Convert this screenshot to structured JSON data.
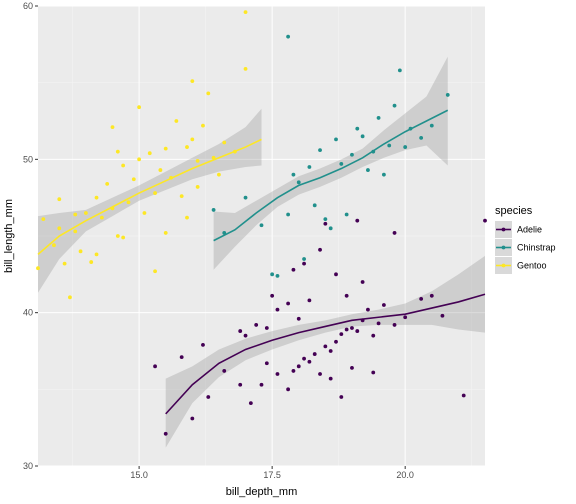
{
  "chart_data": {
    "type": "scatter",
    "title": "",
    "xlabel": "bill_depth_mm",
    "ylabel": "bill_length_mm",
    "xlim": [
      13.1,
      21.5
    ],
    "ylim": [
      30.0,
      60.0
    ],
    "xticks": [
      15.0,
      17.5,
      20.0
    ],
    "xtick_labels": [
      "15.0",
      "17.5",
      "20.0"
    ],
    "yticks": [
      30,
      40,
      50,
      60
    ],
    "ytick_labels": [
      "30",
      "40",
      "50",
      "60"
    ],
    "background": "#ebebeb",
    "grid": true,
    "smoother": "loess with 95% confidence band",
    "legend": {
      "title": "species",
      "position": "right"
    },
    "series": [
      {
        "name": "Adelie",
        "color": "#440154",
        "points": [
          [
            15.5,
            32.1
          ],
          [
            16.0,
            33.1
          ],
          [
            16.3,
            34.5
          ],
          [
            16.9,
            35.3
          ],
          [
            17.1,
            34.1
          ],
          [
            17.3,
            35.3
          ],
          [
            17.4,
            36.7
          ],
          [
            17.6,
            36.0
          ],
          [
            17.8,
            35.0
          ],
          [
            17.9,
            36.2
          ],
          [
            18.0,
            36.5
          ],
          [
            18.1,
            37.0
          ],
          [
            18.2,
            36.8
          ],
          [
            18.3,
            37.3
          ],
          [
            18.4,
            36.0
          ],
          [
            18.5,
            37.8
          ],
          [
            18.6,
            37.5
          ],
          [
            18.7,
            38.1
          ],
          [
            18.8,
            38.6
          ],
          [
            18.9,
            38.9
          ],
          [
            19.0,
            39.0
          ],
          [
            19.1,
            38.8
          ],
          [
            19.2,
            39.5
          ],
          [
            19.3,
            40.2
          ],
          [
            19.4,
            38.5
          ],
          [
            19.5,
            39.3
          ],
          [
            19.6,
            40.5
          ],
          [
            19.8,
            39.2
          ],
          [
            20.0,
            39.7
          ],
          [
            20.3,
            40.9
          ],
          [
            20.5,
            41.1
          ],
          [
            21.1,
            34.6
          ],
          [
            21.5,
            46.0
          ],
          [
            17.8,
            40.6
          ],
          [
            18.1,
            43.2
          ],
          [
            18.4,
            44.1
          ],
          [
            18.7,
            42.5
          ],
          [
            18.9,
            41.1
          ],
          [
            19.2,
            42.0
          ],
          [
            17.5,
            41.1
          ],
          [
            17.2,
            39.2
          ],
          [
            16.6,
            36.2
          ],
          [
            16.2,
            37.9
          ],
          [
            15.8,
            37.1
          ],
          [
            15.3,
            36.5
          ],
          [
            17.0,
            38.5
          ],
          [
            18.5,
            45.8
          ],
          [
            19.1,
            46.0
          ],
          [
            19.8,
            45.2
          ],
          [
            20.7,
            39.8
          ],
          [
            17.9,
            42.8
          ],
          [
            18.2,
            40.8
          ],
          [
            18.0,
            39.6
          ],
          [
            19.4,
            36.1
          ],
          [
            18.8,
            34.5
          ],
          [
            17.6,
            40.2
          ],
          [
            16.9,
            38.8
          ],
          [
            18.6,
            35.7
          ],
          [
            19.0,
            36.4
          ],
          [
            17.4,
            39.0
          ]
        ]
      },
      {
        "name": "Chinstrap",
        "color": "#21908c",
        "points": [
          [
            16.4,
            46.7
          ],
          [
            16.6,
            45.2
          ],
          [
            17.0,
            47.5
          ],
          [
            17.3,
            45.7
          ],
          [
            17.5,
            42.5
          ],
          [
            17.8,
            46.4
          ],
          [
            17.9,
            49.0
          ],
          [
            18.0,
            48.5
          ],
          [
            18.2,
            49.5
          ],
          [
            18.3,
            47.0
          ],
          [
            18.4,
            50.6
          ],
          [
            18.5,
            46.1
          ],
          [
            18.7,
            51.3
          ],
          [
            18.8,
            49.7
          ],
          [
            19.0,
            50.3
          ],
          [
            19.1,
            52.0
          ],
          [
            19.2,
            51.5
          ],
          [
            19.4,
            50.5
          ],
          [
            19.5,
            52.7
          ],
          [
            19.6,
            49.0
          ],
          [
            19.8,
            53.5
          ],
          [
            19.9,
            55.8
          ],
          [
            20.0,
            50.8
          ],
          [
            20.1,
            52.0
          ],
          [
            20.3,
            51.4
          ],
          [
            20.5,
            52.2
          ],
          [
            20.8,
            54.2
          ],
          [
            17.8,
            58.0
          ],
          [
            18.1,
            43.5
          ],
          [
            18.9,
            46.4
          ],
          [
            19.3,
            49.3
          ],
          [
            17.6,
            42.4
          ],
          [
            18.6,
            45.5
          ],
          [
            19.7,
            50.9
          ]
        ]
      },
      {
        "name": "Gentoo",
        "color": "#fde725",
        "points": [
          [
            13.1,
            42.9
          ],
          [
            13.2,
            46.1
          ],
          [
            13.4,
            44.4
          ],
          [
            13.5,
            47.4
          ],
          [
            13.6,
            43.2
          ],
          [
            13.7,
            41.0
          ],
          [
            13.8,
            45.3
          ],
          [
            13.9,
            44.0
          ],
          [
            14.0,
            46.5
          ],
          [
            14.1,
            43.3
          ],
          [
            14.2,
            47.5
          ],
          [
            14.3,
            46.2
          ],
          [
            14.4,
            48.4
          ],
          [
            14.5,
            46.8
          ],
          [
            14.6,
            45.0
          ],
          [
            14.7,
            49.6
          ],
          [
            14.8,
            47.2
          ],
          [
            14.9,
            48.7
          ],
          [
            15.0,
            50.0
          ],
          [
            15.1,
            46.5
          ],
          [
            15.2,
            50.4
          ],
          [
            15.3,
            47.8
          ],
          [
            15.4,
            49.3
          ],
          [
            15.5,
            50.7
          ],
          [
            15.6,
            48.8
          ],
          [
            15.7,
            52.5
          ],
          [
            15.8,
            47.6
          ],
          [
            15.9,
            50.8
          ],
          [
            16.0,
            51.3
          ],
          [
            16.1,
            49.9
          ],
          [
            16.2,
            52.2
          ],
          [
            16.3,
            54.3
          ],
          [
            16.4,
            50.1
          ],
          [
            16.6,
            51.1
          ],
          [
            16.8,
            50.5
          ],
          [
            17.0,
            55.9
          ],
          [
            17.0,
            59.6
          ],
          [
            14.5,
            52.1
          ],
          [
            15.0,
            53.4
          ],
          [
            16.0,
            55.1
          ],
          [
            13.8,
            46.4
          ],
          [
            14.2,
            43.8
          ],
          [
            14.7,
            44.9
          ],
          [
            15.5,
            45.2
          ],
          [
            16.1,
            48.2
          ],
          [
            15.3,
            42.7
          ],
          [
            14.6,
            50.5
          ],
          [
            15.9,
            46.2
          ],
          [
            16.5,
            49.0
          ],
          [
            13.5,
            45.5
          ]
        ]
      }
    ],
    "trend_lines": [
      {
        "series": "Adelie",
        "points": [
          [
            15.5,
            33.4
          ],
          [
            16.0,
            35.3
          ],
          [
            16.5,
            36.7
          ],
          [
            17.0,
            37.6
          ],
          [
            17.5,
            38.2
          ],
          [
            18.0,
            38.7
          ],
          [
            18.5,
            39.1
          ],
          [
            19.0,
            39.5
          ],
          [
            19.5,
            39.7
          ],
          [
            20.0,
            39.9
          ],
          [
            20.5,
            40.3
          ],
          [
            21.0,
            40.7
          ],
          [
            21.5,
            41.2
          ]
        ],
        "band": [
          [
            15.5,
            31.2,
            35.7
          ],
          [
            16.0,
            34.1,
            36.5
          ],
          [
            16.5,
            35.8,
            37.6
          ],
          [
            17.0,
            36.9,
            38.3
          ],
          [
            17.5,
            37.6,
            38.8
          ],
          [
            18.0,
            38.2,
            39.2
          ],
          [
            18.5,
            38.7,
            39.5
          ],
          [
            19.0,
            39.1,
            39.9
          ],
          [
            19.5,
            39.2,
            40.2
          ],
          [
            20.0,
            39.2,
            40.6
          ],
          [
            20.5,
            39.2,
            41.4
          ],
          [
            21.0,
            38.9,
            42.5
          ],
          [
            21.5,
            38.7,
            43.7
          ]
        ]
      },
      {
        "series": "Chinstrap",
        "points": [
          [
            16.4,
            44.7
          ],
          [
            16.8,
            45.4
          ],
          [
            17.2,
            46.5
          ],
          [
            17.6,
            47.5
          ],
          [
            18.0,
            48.3
          ],
          [
            18.4,
            48.8
          ],
          [
            18.8,
            49.4
          ],
          [
            19.2,
            50.1
          ],
          [
            19.6,
            51.0
          ],
          [
            20.0,
            51.8
          ],
          [
            20.4,
            52.5
          ],
          [
            20.8,
            53.2
          ]
        ],
        "band": [
          [
            16.4,
            42.8,
            46.6
          ],
          [
            16.8,
            44.3,
            46.5
          ],
          [
            17.2,
            45.7,
            47.3
          ],
          [
            17.6,
            46.9,
            48.1
          ],
          [
            18.0,
            47.7,
            48.9
          ],
          [
            18.4,
            48.2,
            49.4
          ],
          [
            18.8,
            48.8,
            50.0
          ],
          [
            19.2,
            49.5,
            50.7
          ],
          [
            19.6,
            50.1,
            51.9
          ],
          [
            20.0,
            50.6,
            53.0
          ],
          [
            20.4,
            50.9,
            54.1
          ],
          [
            20.8,
            49.6,
            56.7
          ]
        ]
      },
      {
        "series": "Gentoo",
        "points": [
          [
            13.1,
            43.8
          ],
          [
            13.5,
            45.0
          ],
          [
            14.0,
            46.0
          ],
          [
            14.5,
            46.9
          ],
          [
            15.0,
            47.8
          ],
          [
            15.5,
            48.6
          ],
          [
            16.0,
            49.4
          ],
          [
            16.5,
            50.1
          ],
          [
            17.0,
            50.8
          ],
          [
            17.3,
            51.3
          ]
        ],
        "band": [
          [
            13.1,
            41.3,
            46.3
          ],
          [
            13.5,
            43.5,
            46.5
          ],
          [
            14.0,
            45.3,
            46.7
          ],
          [
            14.5,
            46.3,
            47.5
          ],
          [
            15.0,
            47.3,
            48.3
          ],
          [
            15.5,
            48.0,
            49.2
          ],
          [
            16.0,
            48.7,
            50.1
          ],
          [
            16.5,
            49.2,
            51.0
          ],
          [
            17.0,
            49.5,
            52.1
          ],
          [
            17.3,
            49.6,
            53.3
          ]
        ]
      }
    ]
  }
}
